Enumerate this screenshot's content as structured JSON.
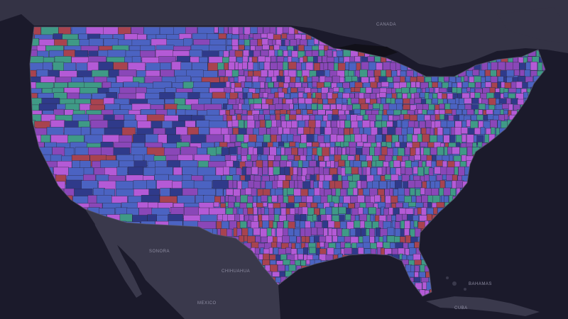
{
  "map": {
    "theme": "dark",
    "colors": {
      "ocean": "#1b1a2b",
      "land": "#3a394c",
      "canada_land": "#343345",
      "lakes": "#111019",
      "borders": "#55546a",
      "county_border": "#2a2840"
    },
    "choropleth_palette": [
      {
        "name": "blue",
        "color": "#4b63c2"
      },
      {
        "name": "purple",
        "color": "#8a47b8"
      },
      {
        "name": "magenta",
        "color": "#b45ad6"
      },
      {
        "name": "green",
        "color": "#3f9a86"
      },
      {
        "name": "red",
        "color": "#a8434f"
      },
      {
        "name": "navy",
        "color": "#2f3a8a"
      }
    ],
    "region_notes": {
      "west": "predominantly blue with purple",
      "pacific_northwest": "green and blue",
      "midwest": "mixed purple, magenta, green",
      "southeast": "blue and purple with green pockets",
      "northeast": "green and blue"
    },
    "labels": {
      "canada_top": "CANADA",
      "mexico": "MEXICO",
      "sonora": "SONORA",
      "chihuahua": "CHIHUAHUA",
      "cuba": "CUBA",
      "bahamas": "BAHAMAS"
    }
  }
}
